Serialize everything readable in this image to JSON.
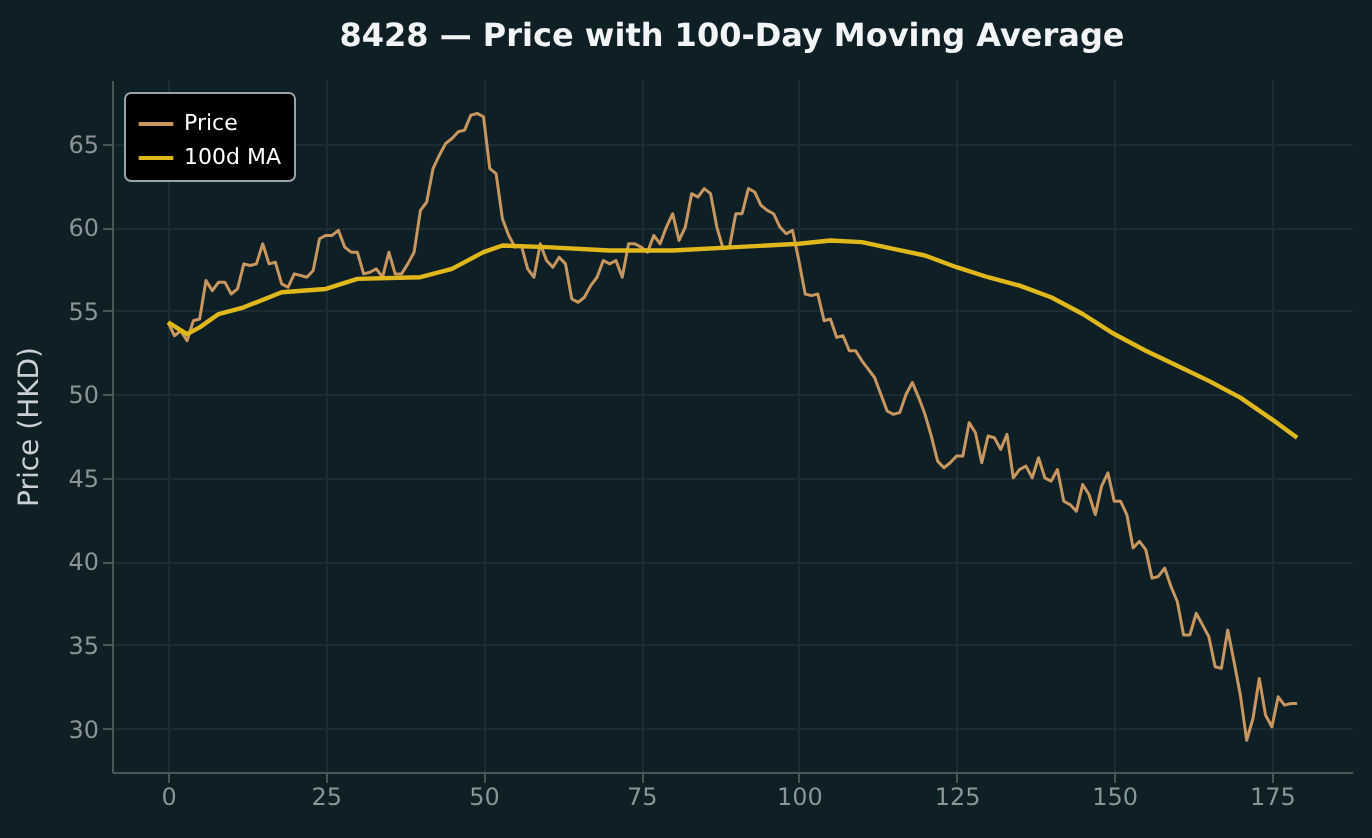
{
  "chart_data": {
    "type": "line",
    "title": "8428 — Price with 100-Day Moving Average",
    "ylabel": "Price (HKD)",
    "xlim": [
      -8.9,
      187.7
    ],
    "xticks": [
      0,
      25,
      50,
      75,
      100,
      125,
      150,
      175
    ],
    "ylim": [
      27.4,
      68.8
    ],
    "yticks": [
      30,
      35,
      40,
      45,
      50,
      55,
      60,
      65
    ],
    "grid": true,
    "legend": "top left",
    "series": [
      {
        "name": "Price",
        "color": "#c8965f",
        "x": [
          0,
          1,
          2,
          3,
          4,
          5,
          6,
          7,
          8,
          9,
          10,
          11,
          12,
          13,
          14,
          15,
          16,
          17,
          18,
          19,
          20,
          21,
          22,
          23,
          24,
          25,
          26,
          27,
          28,
          29,
          30,
          31,
          32,
          33,
          34,
          35,
          36,
          37,
          38,
          39,
          40,
          41,
          42,
          43,
          44,
          45,
          46,
          47,
          48,
          49,
          50,
          51,
          52,
          53,
          54,
          55,
          56,
          57,
          58,
          59,
          60,
          61,
          62,
          63,
          64,
          65,
          66,
          67,
          68,
          69,
          70,
          71,
          72,
          73,
          74,
          75,
          76,
          77,
          78,
          79,
          80,
          81,
          82,
          83,
          84,
          85,
          86,
          87,
          88,
          89,
          90,
          91,
          92,
          93,
          94,
          95,
          96,
          97,
          98,
          99,
          100,
          101,
          102,
          103,
          104,
          105,
          106,
          107,
          108,
          109,
          110,
          111,
          112,
          113,
          114,
          115,
          116,
          117,
          118,
          119,
          120,
          121,
          122,
          123,
          124,
          125,
          126,
          127,
          128,
          129,
          130,
          131,
          132,
          133,
          134,
          135,
          136,
          137,
          138,
          139,
          140,
          141,
          142,
          143,
          144,
          145,
          146,
          147,
          148,
          149,
          150,
          151,
          152,
          153,
          154,
          155,
          156,
          157,
          158,
          159,
          160,
          161,
          162,
          163,
          164,
          165,
          166,
          167,
          168,
          169,
          170,
          171,
          172,
          173,
          174,
          175,
          176,
          177,
          178,
          179
        ],
        "values": [
          54.3,
          53.5,
          53.8,
          53.2,
          54.4,
          54.5,
          56.8,
          56.2,
          56.7,
          56.7,
          56.0,
          56.3,
          57.8,
          57.7,
          57.8,
          59.0,
          57.8,
          57.9,
          56.6,
          56.4,
          57.2,
          57.1,
          57.0,
          57.4,
          59.3,
          59.5,
          59.5,
          59.8,
          58.8,
          58.5,
          58.5,
          57.2,
          57.3,
          57.5,
          57.0,
          58.5,
          57.2,
          57.2,
          57.8,
          58.5,
          61.0,
          61.5,
          63.5,
          64.3,
          65.0,
          65.3,
          65.7,
          65.8,
          66.7,
          66.8,
          66.6,
          63.5,
          63.2,
          60.5,
          59.5,
          58.8,
          58.9,
          57.5,
          57.0,
          59.0,
          58.0,
          57.6,
          58.2,
          57.8,
          55.7,
          55.5,
          55.8,
          56.5,
          57.0,
          58.0,
          57.8,
          58.0,
          57.0,
          59.0,
          59.0,
          58.8,
          58.5,
          59.5,
          59.0,
          60.0,
          60.8,
          59.2,
          60.0,
          62.0,
          61.8,
          62.3,
          62.0,
          60.0,
          58.7,
          58.8,
          60.8,
          60.8,
          62.3,
          62.1,
          61.3,
          61.0,
          60.8,
          60.0,
          59.6,
          59.8,
          58.0,
          56.0,
          55.9,
          56.0,
          54.4,
          54.5,
          53.4,
          53.5,
          52.6,
          52.6,
          52.0,
          51.5,
          51.0,
          50.0,
          49.0,
          48.8,
          48.9,
          50.0,
          50.7,
          49.8,
          48.8,
          47.5,
          46.0,
          45.6,
          45.9,
          46.3,
          46.3,
          48.3,
          47.7,
          45.9,
          47.5,
          47.4,
          46.7,
          47.6,
          45.0,
          45.5,
          45.7,
          45.0,
          46.2,
          45.0,
          44.8,
          45.5,
          43.6,
          43.4,
          43.0,
          44.6,
          44.0,
          42.8,
          44.5,
          45.3,
          43.6,
          43.6,
          42.8,
          40.8,
          41.2,
          40.7,
          39.0,
          39.1,
          39.6,
          38.5,
          37.6,
          35.6,
          35.6,
          36.9,
          36.2,
          35.5,
          33.7,
          33.6,
          35.9,
          34.0,
          32.0,
          29.3,
          30.6,
          33.0,
          30.8,
          30.1,
          31.9,
          31.4,
          31.5,
          31.5
        ]
      },
      {
        "name": "100d MA",
        "color": "#e0b81c",
        "x": [
          0,
          3,
          5,
          8,
          12,
          18,
          25,
          30,
          40,
          45,
          50,
          53,
          60,
          70,
          80,
          90,
          100,
          105,
          110,
          115,
          120,
          125,
          130,
          135,
          140,
          145,
          150,
          155,
          160,
          165,
          170,
          175,
          179
        ],
        "values": [
          54.3,
          53.6,
          54.0,
          54.8,
          55.2,
          56.1,
          56.3,
          56.9,
          57.0,
          57.5,
          58.5,
          58.9,
          58.8,
          58.6,
          58.6,
          58.8,
          59.0,
          59.2,
          59.1,
          58.7,
          58.3,
          57.6,
          57.0,
          56.5,
          55.8,
          54.8,
          53.6,
          52.6,
          51.7,
          50.8,
          49.8,
          48.5,
          47.4
        ]
      }
    ]
  }
}
